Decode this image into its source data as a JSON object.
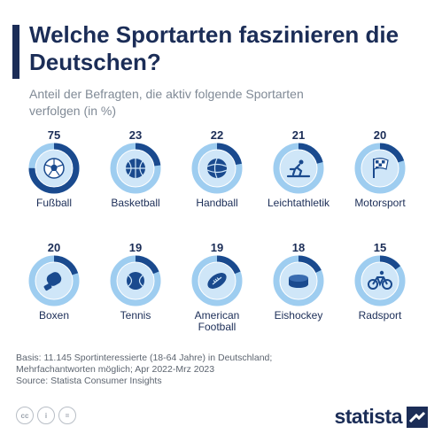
{
  "header": {
    "title": "Welche Sportarten faszinieren die Deutschen?",
    "subtitle": "Anteil der Befragten, die aktiv folgende Sportarten verfolgen (in %)"
  },
  "colors": {
    "accent": "#1b2d57",
    "ring_fill": "#1a4a8e",
    "ring_track": "#9ecdf0",
    "icon_circle": "#cfe6f8"
  },
  "chart_data": {
    "type": "radial-progress",
    "unit": "%",
    "items": [
      {
        "label": "Fußball",
        "value": 75,
        "icon": "soccer-ball-icon"
      },
      {
        "label": "Basketball",
        "value": 23,
        "icon": "basketball-icon"
      },
      {
        "label": "Handball",
        "value": 22,
        "icon": "handball-icon"
      },
      {
        "label": "Leichtathletik",
        "value": 21,
        "icon": "sprinter-icon"
      },
      {
        "label": "Motorsport",
        "value": 20,
        "icon": "checkered-flag-icon"
      },
      {
        "label": "Boxen",
        "value": 20,
        "icon": "boxing-glove-icon"
      },
      {
        "label": "Tennis",
        "value": 19,
        "icon": "tennis-ball-icon"
      },
      {
        "label": "American Football",
        "value": 19,
        "icon": "american-football-icon"
      },
      {
        "label": "Eishockey",
        "value": 18,
        "icon": "hockey-puck-icon"
      },
      {
        "label": "Radsport",
        "value": 15,
        "icon": "bicycle-icon"
      }
    ]
  },
  "footer": {
    "basis_line1": "Basis: 11.145 Sportinteressierte (18-64 Jahre) in Deutschland;",
    "basis_line2": "Mehrfachantworten möglich; Apr 2022-Mrz 2023",
    "source": "Source: Statista Consumer Insights"
  },
  "license_icons": [
    "cc-icon",
    "attribution-icon",
    "no-derivatives-icon"
  ],
  "license_labels": [
    "cc",
    "i",
    "="
  ],
  "brand": {
    "name": "statista"
  }
}
